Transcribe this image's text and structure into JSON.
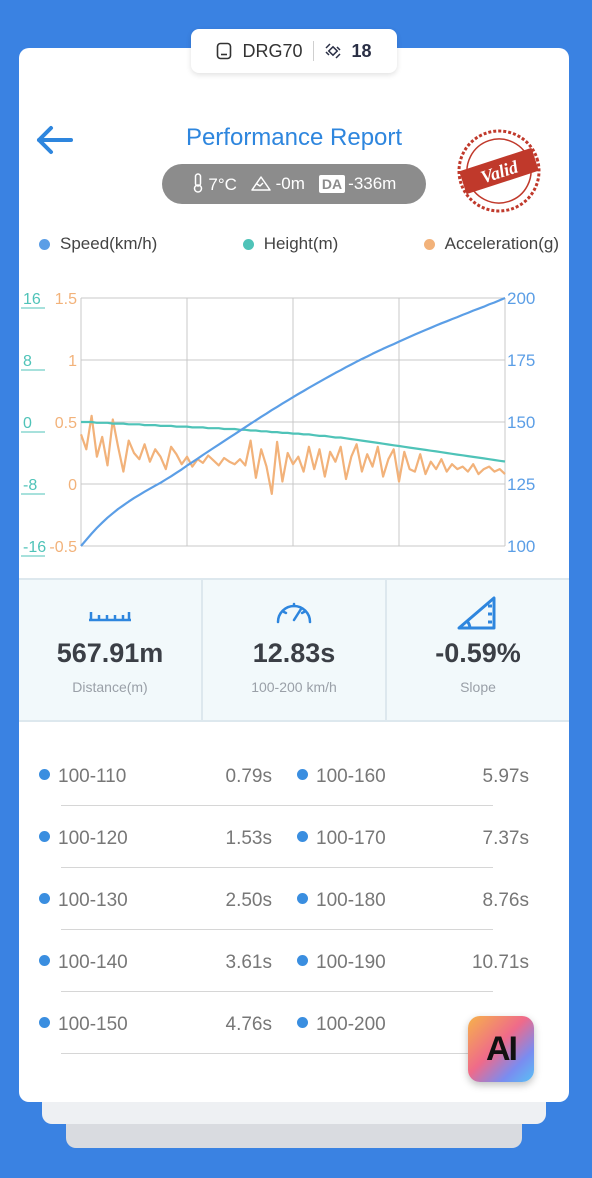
{
  "device": {
    "name": "DRG70",
    "satellites": "18"
  },
  "header": {
    "title": "Performance Report"
  },
  "conditions": {
    "temperature": "7°C",
    "altitude": "-0m",
    "da_label": "DA",
    "density_altitude": "-336m"
  },
  "stamp": {
    "text": "Valid",
    "color": "#c0392b"
  },
  "legend": [
    {
      "label": "Speed(km/h)",
      "color": "#5b9ee6"
    },
    {
      "label": "Height(m)",
      "color": "#4fc3b8"
    },
    {
      "label": "Acceleration(g)",
      "color": "#f2b27a"
    }
  ],
  "chart_data": {
    "type": "line",
    "x": [
      0,
      1,
      2,
      3,
      4,
      5,
      6,
      7,
      8,
      9,
      10,
      11,
      12,
      13,
      14,
      15,
      16,
      17,
      18,
      19,
      20,
      21,
      22,
      23,
      24,
      25,
      26,
      27,
      28,
      29,
      30,
      31,
      32,
      33,
      34,
      35,
      36,
      37,
      38,
      39,
      40,
      41,
      42,
      43,
      44,
      45,
      46,
      47,
      48,
      49,
      50,
      51,
      52,
      53,
      54,
      55,
      56,
      57,
      58,
      59,
      60,
      61,
      62,
      63,
      64,
      65,
      66,
      67,
      68,
      69,
      70,
      71,
      72,
      73,
      74,
      75,
      76,
      77,
      78,
      79,
      80
    ],
    "axes": {
      "height": {
        "ticks": [
          "16",
          "8",
          "0",
          "-8",
          "-16"
        ],
        "range": [
          -16,
          16
        ],
        "color": "#4fc3b8"
      },
      "acceleration": {
        "ticks": [
          "1.5",
          "1",
          "0.5",
          "0",
          "-0.5"
        ],
        "range": [
          -0.5,
          1.5
        ],
        "color": "#f2b27a"
      },
      "speed": {
        "ticks": [
          "200",
          "175",
          "150",
          "125",
          "100"
        ],
        "range": [
          100,
          200
        ],
        "color": "#5b9ee6"
      }
    },
    "series": [
      {
        "name": "Speed(km/h)",
        "axis": "speed",
        "color": "#5b9ee6",
        "values": [
          100,
          102.5,
          105,
          107.3,
          109.4,
          111.4,
          113.2,
          114.9,
          116.4,
          117.9,
          119.3,
          120.6,
          121.9,
          123.1,
          124.3,
          125.5,
          126.8,
          128.1,
          129.5,
          130.9,
          132.4,
          133.8,
          135.2,
          136.7,
          138.1,
          139.5,
          140.9,
          142.3,
          143.7,
          145.1,
          146.5,
          147.9,
          149.3,
          150.7,
          152.1,
          153.4,
          154.8,
          156.1,
          157.4,
          158.7,
          160,
          161.3,
          162.5,
          163.8,
          165,
          166.2,
          167.4,
          168.6,
          169.8,
          170.9,
          172.1,
          173.2,
          174.3,
          175.4,
          176.4,
          177.5,
          178.5,
          179.5,
          180.5,
          181.4,
          182.4,
          183.4,
          184.3,
          185.3,
          186.2,
          187.1,
          188,
          188.9,
          189.8,
          190.6,
          191.5,
          192.3,
          193.2,
          194,
          194.9,
          195.7,
          196.5,
          197.4,
          198.2,
          199.1,
          200
        ]
      },
      {
        "name": "Height(m)",
        "axis": "height",
        "color": "#4fc3b8",
        "values": [
          0,
          0,
          0,
          -0.1,
          -0.1,
          -0.1,
          -0.2,
          -0.2,
          -0.2,
          -0.3,
          -0.3,
          -0.3,
          -0.4,
          -0.4,
          -0.4,
          -0.5,
          -0.5,
          -0.5,
          -0.6,
          -0.6,
          -0.6,
          -0.7,
          -0.7,
          -0.7,
          -0.8,
          -0.8,
          -0.8,
          -0.9,
          -0.9,
          -0.9,
          -1,
          -1,
          -1.1,
          -1.1,
          -1.2,
          -1.2,
          -1.3,
          -1.3,
          -1.4,
          -1.4,
          -1.5,
          -1.5,
          -1.6,
          -1.6,
          -1.7,
          -1.8,
          -1.8,
          -1.9,
          -2,
          -2,
          -2.1,
          -2.2,
          -2.3,
          -2.4,
          -2.5,
          -2.6,
          -2.7,
          -2.8,
          -2.9,
          -3,
          -3.1,
          -3.2,
          -3.3,
          -3.4,
          -3.5,
          -3.6,
          -3.7,
          -3.8,
          -3.9,
          -4,
          -4.1,
          -4.2,
          -4.3,
          -4.4,
          -4.5,
          -4.6,
          -4.7,
          -4.8,
          -4.9,
          -5,
          -5.1
        ]
      },
      {
        "name": "Acceleration(g)",
        "axis": "acceleration",
        "color": "#f2b27a",
        "values": [
          0.4,
          0.28,
          0.55,
          0.22,
          0.38,
          0.15,
          0.52,
          0.3,
          0.1,
          0.35,
          0.25,
          0.2,
          0.32,
          0.18,
          0.28,
          0.22,
          0.12,
          0.3,
          0.24,
          0.16,
          0.22,
          0.14,
          0.2,
          0.17,
          0.23,
          0.19,
          0.15,
          0.21,
          0.18,
          0.16,
          0.2,
          0.15,
          0.35,
          0.05,
          0.28,
          0.14,
          -0.08,
          0.34,
          0.02,
          0.25,
          0.16,
          0.22,
          0.1,
          0.3,
          0.12,
          0.28,
          0.06,
          0.26,
          0.18,
          0.3,
          0.04,
          0.22,
          0.32,
          0.1,
          0.24,
          0.14,
          0.3,
          0.06,
          0.2,
          0.28,
          0.02,
          0.26,
          0.12,
          0.1,
          0.24,
          0.08,
          0.18,
          0.12,
          0.2,
          0.1,
          0.16,
          0.12,
          0.14,
          0.1,
          0.16,
          0.08,
          0.12,
          0.14,
          0.1,
          0.12,
          0.08
        ]
      }
    ],
    "grid": true
  },
  "stats": [
    {
      "value": "567.91m",
      "label": "Distance(m)",
      "icon": "ruler-icon"
    },
    {
      "value": "12.83s",
      "label": "100-200 km/h",
      "icon": "speedometer-icon"
    },
    {
      "value": "-0.59%",
      "label": "Slope",
      "icon": "slope-icon"
    }
  ],
  "splits": [
    {
      "left_range": "100-110",
      "left_time": "0.79s",
      "right_range": "100-160",
      "right_time": "5.97s"
    },
    {
      "left_range": "100-120",
      "left_time": "1.53s",
      "right_range": "100-170",
      "right_time": "7.37s"
    },
    {
      "left_range": "100-130",
      "left_time": "2.50s",
      "right_range": "100-180",
      "right_time": "8.76s"
    },
    {
      "left_range": "100-140",
      "left_time": "3.61s",
      "right_range": "100-190",
      "right_time": "10.71s"
    },
    {
      "left_range": "100-150",
      "left_time": "4.76s",
      "right_range": "100-200",
      "right_time": ""
    }
  ],
  "ai_badge": {
    "text": "AI"
  }
}
